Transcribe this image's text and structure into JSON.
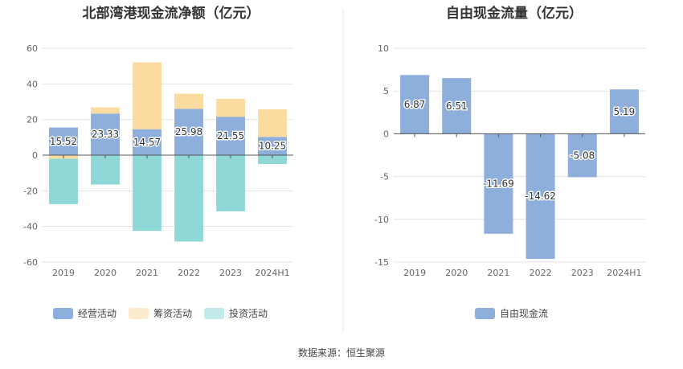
{
  "chart_data": [
    {
      "type": "bar",
      "stacked": true,
      "title": "北部湾港现金流净额（亿元）",
      "categories": [
        "2019",
        "2020",
        "2021",
        "2022",
        "2023",
        "2024H1"
      ],
      "ylim": [
        -60,
        60
      ],
      "yticks": [
        "60",
        "40",
        "20",
        "0",
        "-20",
        "-40",
        "-60"
      ],
      "grid": true,
      "legend_position": "bottom",
      "series": [
        {
          "name": "经营活动",
          "color": "#8eaedc",
          "values": [
            15.52,
            23.33,
            14.57,
            25.98,
            21.55,
            10.25
          ]
        },
        {
          "name": "筹资活动",
          "color": "#fcdba0",
          "values": [
            -2,
            3.5,
            37.5,
            8.5,
            10,
            15.5
          ]
        },
        {
          "name": "投资活动",
          "color": "#8fd8d8",
          "values": [
            -25.5,
            -16.5,
            -42.5,
            -48.5,
            -31.5,
            -5
          ]
        }
      ],
      "data_labels": [
        "15.52",
        "23.33",
        "14.57",
        "25.98",
        "21.55",
        "10.25"
      ]
    },
    {
      "type": "bar",
      "title": "自由现金流量（亿元）",
      "categories": [
        "2019",
        "2020",
        "2021",
        "2022",
        "2023",
        "2024H1"
      ],
      "ylim": [
        -15,
        10
      ],
      "yticks": [
        "10",
        "5",
        "0",
        "-5",
        "-10",
        "-15"
      ],
      "grid": true,
      "legend_position": "bottom",
      "series": [
        {
          "name": "自由现金流",
          "color": "#8eaedc",
          "values": [
            6.87,
            6.51,
            -11.69,
            -14.62,
            -5.08,
            5.19
          ]
        }
      ],
      "data_labels": [
        "6.87",
        "6.51",
        "-11.69",
        "-14.62",
        "-5.08",
        "5.19"
      ]
    }
  ],
  "source_text": "数据来源：恒生聚源",
  "colors": {
    "grid": "#e3e3e3",
    "axis": "#555555",
    "divider": "#e8e8e8"
  }
}
